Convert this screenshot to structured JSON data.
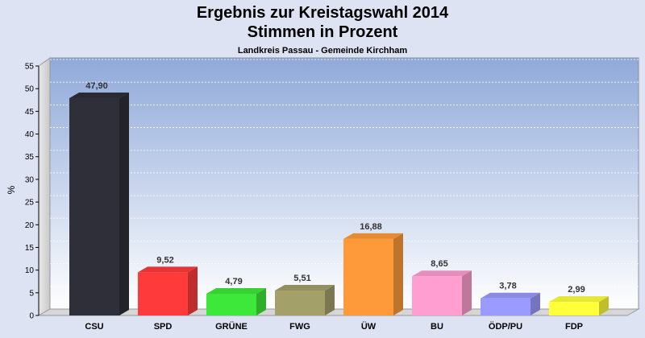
{
  "chart_data": {
    "type": "bar",
    "title": "Ergebnis zur Kreistagswahl 2014",
    "title2": "Stimmen in Prozent",
    "subtitle": "Landkreis Passau - Gemeinde Kirchham",
    "ylabel": "%",
    "xlabel": "",
    "ylim": [
      0,
      55
    ],
    "yticks": [
      0,
      5,
      10,
      15,
      20,
      25,
      30,
      35,
      40,
      45,
      50,
      55
    ],
    "grid": true,
    "categories": [
      "CSU",
      "SPD",
      "GRÜNE",
      "FWG",
      "ÜW",
      "BU",
      "ÖDP/PU",
      "FDP"
    ],
    "values": [
      47.9,
      9.52,
      4.79,
      5.51,
      16.88,
      8.65,
      3.78,
      2.99
    ],
    "value_labels": [
      "47,90",
      "9,52",
      "4,79",
      "5,51",
      "16,88",
      "8,65",
      "3,78",
      "2,99"
    ],
    "colors": [
      "#2e2f38",
      "#ff3a3a",
      "#3ee83a",
      "#a3a06a",
      "#ff9a3a",
      "#ff9ed0",
      "#9a9aff",
      "#ffff3a"
    ]
  }
}
